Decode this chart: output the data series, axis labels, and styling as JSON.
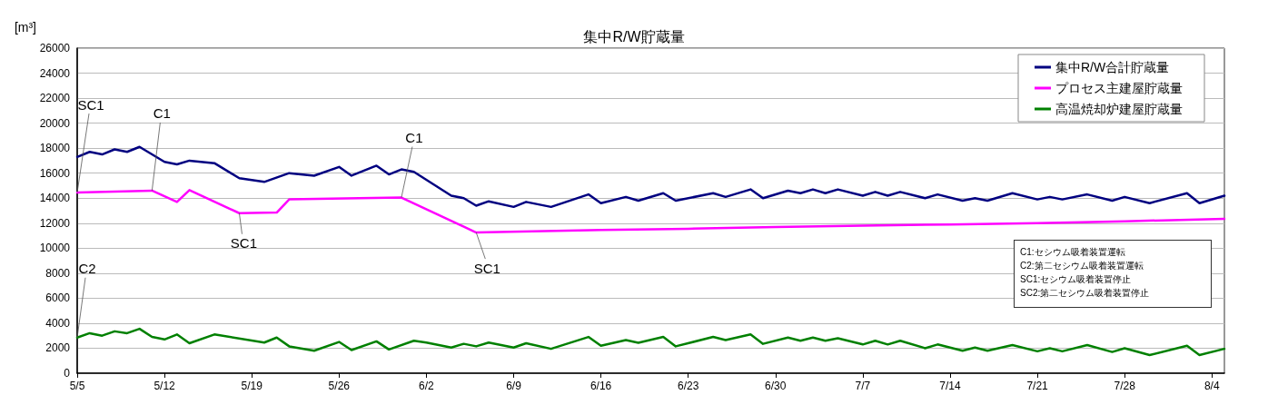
{
  "chart_data": {
    "type": "line",
    "title": "集中R/W貯蔵量",
    "ylabel": "[m³]",
    "xlim": [
      "--05-05",
      "--08-05"
    ],
    "xticks": [
      {
        "value": "--05-05",
        "label": "5/5"
      },
      {
        "value": "--05-12",
        "label": "5/12"
      },
      {
        "value": "--05-19",
        "label": "5/19"
      },
      {
        "value": "--05-26",
        "label": "5/26"
      },
      {
        "value": "--06-02",
        "label": "6/2"
      },
      {
        "value": "--06-09",
        "label": "6/9"
      },
      {
        "value": "--06-16",
        "label": "6/16"
      },
      {
        "value": "--06-23",
        "label": "6/23"
      },
      {
        "value": "--06-30",
        "label": "6/30"
      },
      {
        "value": "--07-07",
        "label": "7/7"
      },
      {
        "value": "--07-14",
        "label": "7/14"
      },
      {
        "value": "--07-21",
        "label": "7/21"
      },
      {
        "value": "--07-28",
        "label": "7/28"
      },
      {
        "value": "--08-04",
        "label": "8/4"
      }
    ],
    "ylim": [
      0,
      26000
    ],
    "yticks": [
      0,
      2000,
      4000,
      6000,
      8000,
      10000,
      12000,
      14000,
      16000,
      18000,
      20000,
      22000,
      24000,
      26000
    ],
    "grid": "y",
    "legend": "top right",
    "marker": "none",
    "line_style": "solid",
    "series": [
      {
        "name": "集中R/W合計貯蔵量",
        "color": "#000080",
        "x": [
          "--05-05",
          "--05-06",
          "--05-07",
          "--05-08",
          "--05-09",
          "--05-10",
          "--05-12",
          "--05-13",
          "--05-14",
          "--05-16",
          "--05-18",
          "--05-20",
          "--05-22",
          "--05-24",
          "--05-26",
          "--05-27",
          "--05-29",
          "--05-30",
          "--05-31",
          "--06-01",
          "--06-04",
          "--06-05",
          "--06-06",
          "--06-07",
          "--06-09",
          "--06-10",
          "--06-12",
          "--06-15",
          "--06-16",
          "--06-18",
          "--06-19",
          "--06-21",
          "--06-22",
          "--06-25",
          "--06-26",
          "--06-28",
          "--06-29",
          "--07-01",
          "--07-02",
          "--07-03",
          "--07-04",
          "--07-05",
          "--07-07",
          "--07-08",
          "--07-09",
          "--07-10",
          "--07-12",
          "--07-13",
          "--07-15",
          "--07-16",
          "--07-17",
          "--07-19",
          "--07-21",
          "--07-22",
          "--07-23",
          "--07-25",
          "--07-27",
          "--07-28",
          "--07-30",
          "--08-02",
          "--08-03",
          "--08-05"
        ],
        "values": [
          17300,
          17700,
          17500,
          17900,
          17700,
          18100,
          16900,
          16700,
          17000,
          16800,
          15600,
          15300,
          16000,
          15800,
          16500,
          15800,
          16600,
          15900,
          16300,
          16100,
          14200,
          14000,
          13400,
          13750,
          13300,
          13700,
          13300,
          14300,
          13600,
          14100,
          13800,
          14400,
          13800,
          14400,
          14100,
          14700,
          14000,
          14600,
          14400,
          14700,
          14400,
          14700,
          14200,
          14500,
          14200,
          14500,
          14000,
          14300,
          13800,
          14000,
          13800,
          14400,
          13900,
          14100,
          13900,
          14300,
          13800,
          14100,
          13600,
          14400,
          13600,
          14200
        ]
      },
      {
        "name": "プロセス主建屋貯蔵量",
        "color": "#ff00ff",
        "x": [
          "--05-05",
          "--05-11",
          "--05-13",
          "--05-14",
          "--05-18",
          "--05-21",
          "--05-22",
          "--05-31",
          "--06-06",
          "--06-16",
          "--06-23",
          "--06-30",
          "--07-07",
          "--07-14",
          "--07-21",
          "--07-28",
          "--08-05"
        ],
        "values": [
          14450,
          14600,
          13700,
          14650,
          12800,
          12850,
          13900,
          14050,
          11250,
          11450,
          11550,
          11700,
          11800,
          11900,
          12000,
          12150,
          12350
        ]
      },
      {
        "name": "高温焼却炉建屋貯蔵量",
        "color": "#008000",
        "x": [
          "--05-05",
          "--05-06",
          "--05-07",
          "--05-08",
          "--05-09",
          "--05-10",
          "--05-11",
          "--05-12",
          "--05-13",
          "--05-14",
          "--05-16",
          "--05-20",
          "--05-21",
          "--05-22",
          "--05-24",
          "--05-26",
          "--05-27",
          "--05-29",
          "--05-30",
          "--06-01",
          "--06-02",
          "--06-04",
          "--06-05",
          "--06-06",
          "--06-07",
          "--06-09",
          "--06-10",
          "--06-12",
          "--06-15",
          "--06-16",
          "--06-18",
          "--06-19",
          "--06-21",
          "--06-22",
          "--06-25",
          "--06-26",
          "--06-28",
          "--06-29",
          "--07-01",
          "--07-02",
          "--07-03",
          "--07-04",
          "--07-05",
          "--07-07",
          "--07-08",
          "--07-09",
          "--07-10",
          "--07-12",
          "--07-13",
          "--07-15",
          "--07-16",
          "--07-17",
          "--07-19",
          "--07-21",
          "--07-22",
          "--07-23",
          "--07-25",
          "--07-27",
          "--07-28",
          "--07-30",
          "--08-02",
          "--08-03",
          "--08-05"
        ],
        "values": [
          2850,
          3200,
          3000,
          3350,
          3200,
          3550,
          2900,
          2700,
          3100,
          2400,
          3100,
          2450,
          2850,
          2150,
          1800,
          2500,
          1850,
          2550,
          1900,
          2600,
          2450,
          2050,
          2350,
          2150,
          2450,
          2050,
          2400,
          1950,
          2900,
          2200,
          2650,
          2430,
          2900,
          2150,
          2900,
          2650,
          3100,
          2350,
          2850,
          2600,
          2850,
          2600,
          2800,
          2300,
          2600,
          2300,
          2600,
          2000,
          2300,
          1800,
          2050,
          1800,
          2250,
          1750,
          2000,
          1750,
          2250,
          1700,
          2000,
          1450,
          2200,
          1450,
          1950
        ]
      }
    ],
    "annotations": [
      {
        "text": "SC1",
        "x": "--05-05",
        "y": 14450
      },
      {
        "text": "C1",
        "x": "--05-11",
        "y": 14600
      },
      {
        "text": "SC1",
        "x": "--05-18",
        "y": 12800
      },
      {
        "text": "C1",
        "x": "--05-31",
        "y": 14050
      },
      {
        "text": "SC1",
        "x": "--06-06",
        "y": 11250
      },
      {
        "text": "C2",
        "x": "--05-05",
        "y": 2850
      },
      "C1:セシウム吸着装置運転",
      "C2:第二セシウム吸着装置運転",
      "SC1:セシウム吸着装置停止",
      "SC2:第二セシウム吸着装置停止"
    ]
  }
}
